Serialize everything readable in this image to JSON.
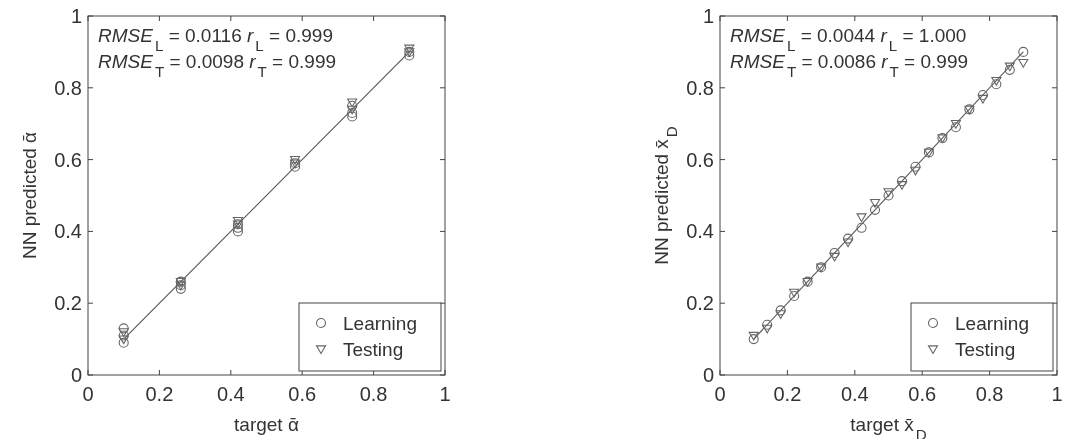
{
  "chart_data": [
    {
      "type": "scatter",
      "xlabel": "target ᾱ",
      "ylabel": "NN predicted ᾱ",
      "xlim": [
        0,
        1
      ],
      "ylim": [
        0,
        1
      ],
      "xticks": [
        0,
        0.2,
        0.4,
        0.6,
        0.8,
        1
      ],
      "yticks": [
        0,
        0.2,
        0.4,
        0.6,
        0.8,
        1
      ],
      "legend": "bottom right",
      "annotations": [
        "RMSE$_{L}$ = 0.0116  r$_{L}$ = 0.999",
        "RMSE$_{T}$ = 0.0098  r$_{T}$ = 0.999"
      ],
      "series": [
        {
          "type": "line",
          "color": "#555555",
          "marker": "none",
          "x": [
            0.1,
            0.9
          ],
          "values": [
            0.1,
            0.9
          ]
        },
        {
          "name": "Learning",
          "color": "#666666",
          "marker": "circle",
          "x": [
            0.1,
            0.1,
            0.1,
            0.26,
            0.26,
            0.26,
            0.42,
            0.42,
            0.42,
            0.58,
            0.58,
            0.74,
            0.74,
            0.74,
            0.9,
            0.9
          ],
          "values": [
            0.09,
            0.11,
            0.13,
            0.24,
            0.25,
            0.26,
            0.4,
            0.41,
            0.42,
            0.58,
            0.59,
            0.72,
            0.73,
            0.75,
            0.89,
            0.9
          ]
        },
        {
          "name": "Testing",
          "color": "#666666",
          "marker": "triangle",
          "x": [
            0.1,
            0.1,
            0.26,
            0.26,
            0.42,
            0.42,
            0.58,
            0.58,
            0.74,
            0.74,
            0.9,
            0.9
          ],
          "values": [
            0.12,
            0.1,
            0.26,
            0.25,
            0.43,
            0.42,
            0.6,
            0.59,
            0.76,
            0.74,
            0.91,
            0.9
          ]
        }
      ]
    },
    {
      "type": "scatter",
      "xlabel": "target x̄$_{D}$",
      "ylabel": "NN predicted x̄$_{D}$",
      "xlim": [
        0,
        1
      ],
      "ylim": [
        0,
        1
      ],
      "xticks": [
        0,
        0.2,
        0.4,
        0.6,
        0.8,
        1
      ],
      "yticks": [
        0,
        0.2,
        0.4,
        0.6,
        0.8,
        1
      ],
      "legend": "bottom right",
      "annotations": [
        "RMSE$_{L}$ = 0.0044  r$_{L}$ = 1.000",
        "RMSE$_{T}$ = 0.0086  r$_{T}$ = 0.999"
      ],
      "series": [
        {
          "type": "line",
          "color": "#555555",
          "marker": "none",
          "x": [
            0.1,
            0.9
          ],
          "values": [
            0.1,
            0.9
          ]
        },
        {
          "name": "Learning",
          "color": "#666666",
          "marker": "circle",
          "x": [
            0.1,
            0.14,
            0.18,
            0.22,
            0.26,
            0.3,
            0.34,
            0.38,
            0.42,
            0.46,
            0.5,
            0.54,
            0.58,
            0.62,
            0.66,
            0.7,
            0.74,
            0.78,
            0.82,
            0.86,
            0.9
          ],
          "values": [
            0.1,
            0.14,
            0.18,
            0.22,
            0.26,
            0.3,
            0.34,
            0.38,
            0.41,
            0.46,
            0.5,
            0.54,
            0.58,
            0.62,
            0.66,
            0.69,
            0.74,
            0.78,
            0.81,
            0.85,
            0.9
          ]
        },
        {
          "name": "Testing",
          "color": "#666666",
          "marker": "triangle",
          "x": [
            0.1,
            0.14,
            0.18,
            0.22,
            0.26,
            0.3,
            0.34,
            0.38,
            0.42,
            0.46,
            0.5,
            0.54,
            0.58,
            0.62,
            0.66,
            0.7,
            0.74,
            0.78,
            0.82,
            0.86,
            0.9
          ],
          "values": [
            0.11,
            0.13,
            0.17,
            0.23,
            0.26,
            0.3,
            0.33,
            0.37,
            0.44,
            0.48,
            0.51,
            0.53,
            0.57,
            0.62,
            0.66,
            0.7,
            0.74,
            0.77,
            0.82,
            0.86,
            0.87
          ]
        }
      ]
    }
  ]
}
